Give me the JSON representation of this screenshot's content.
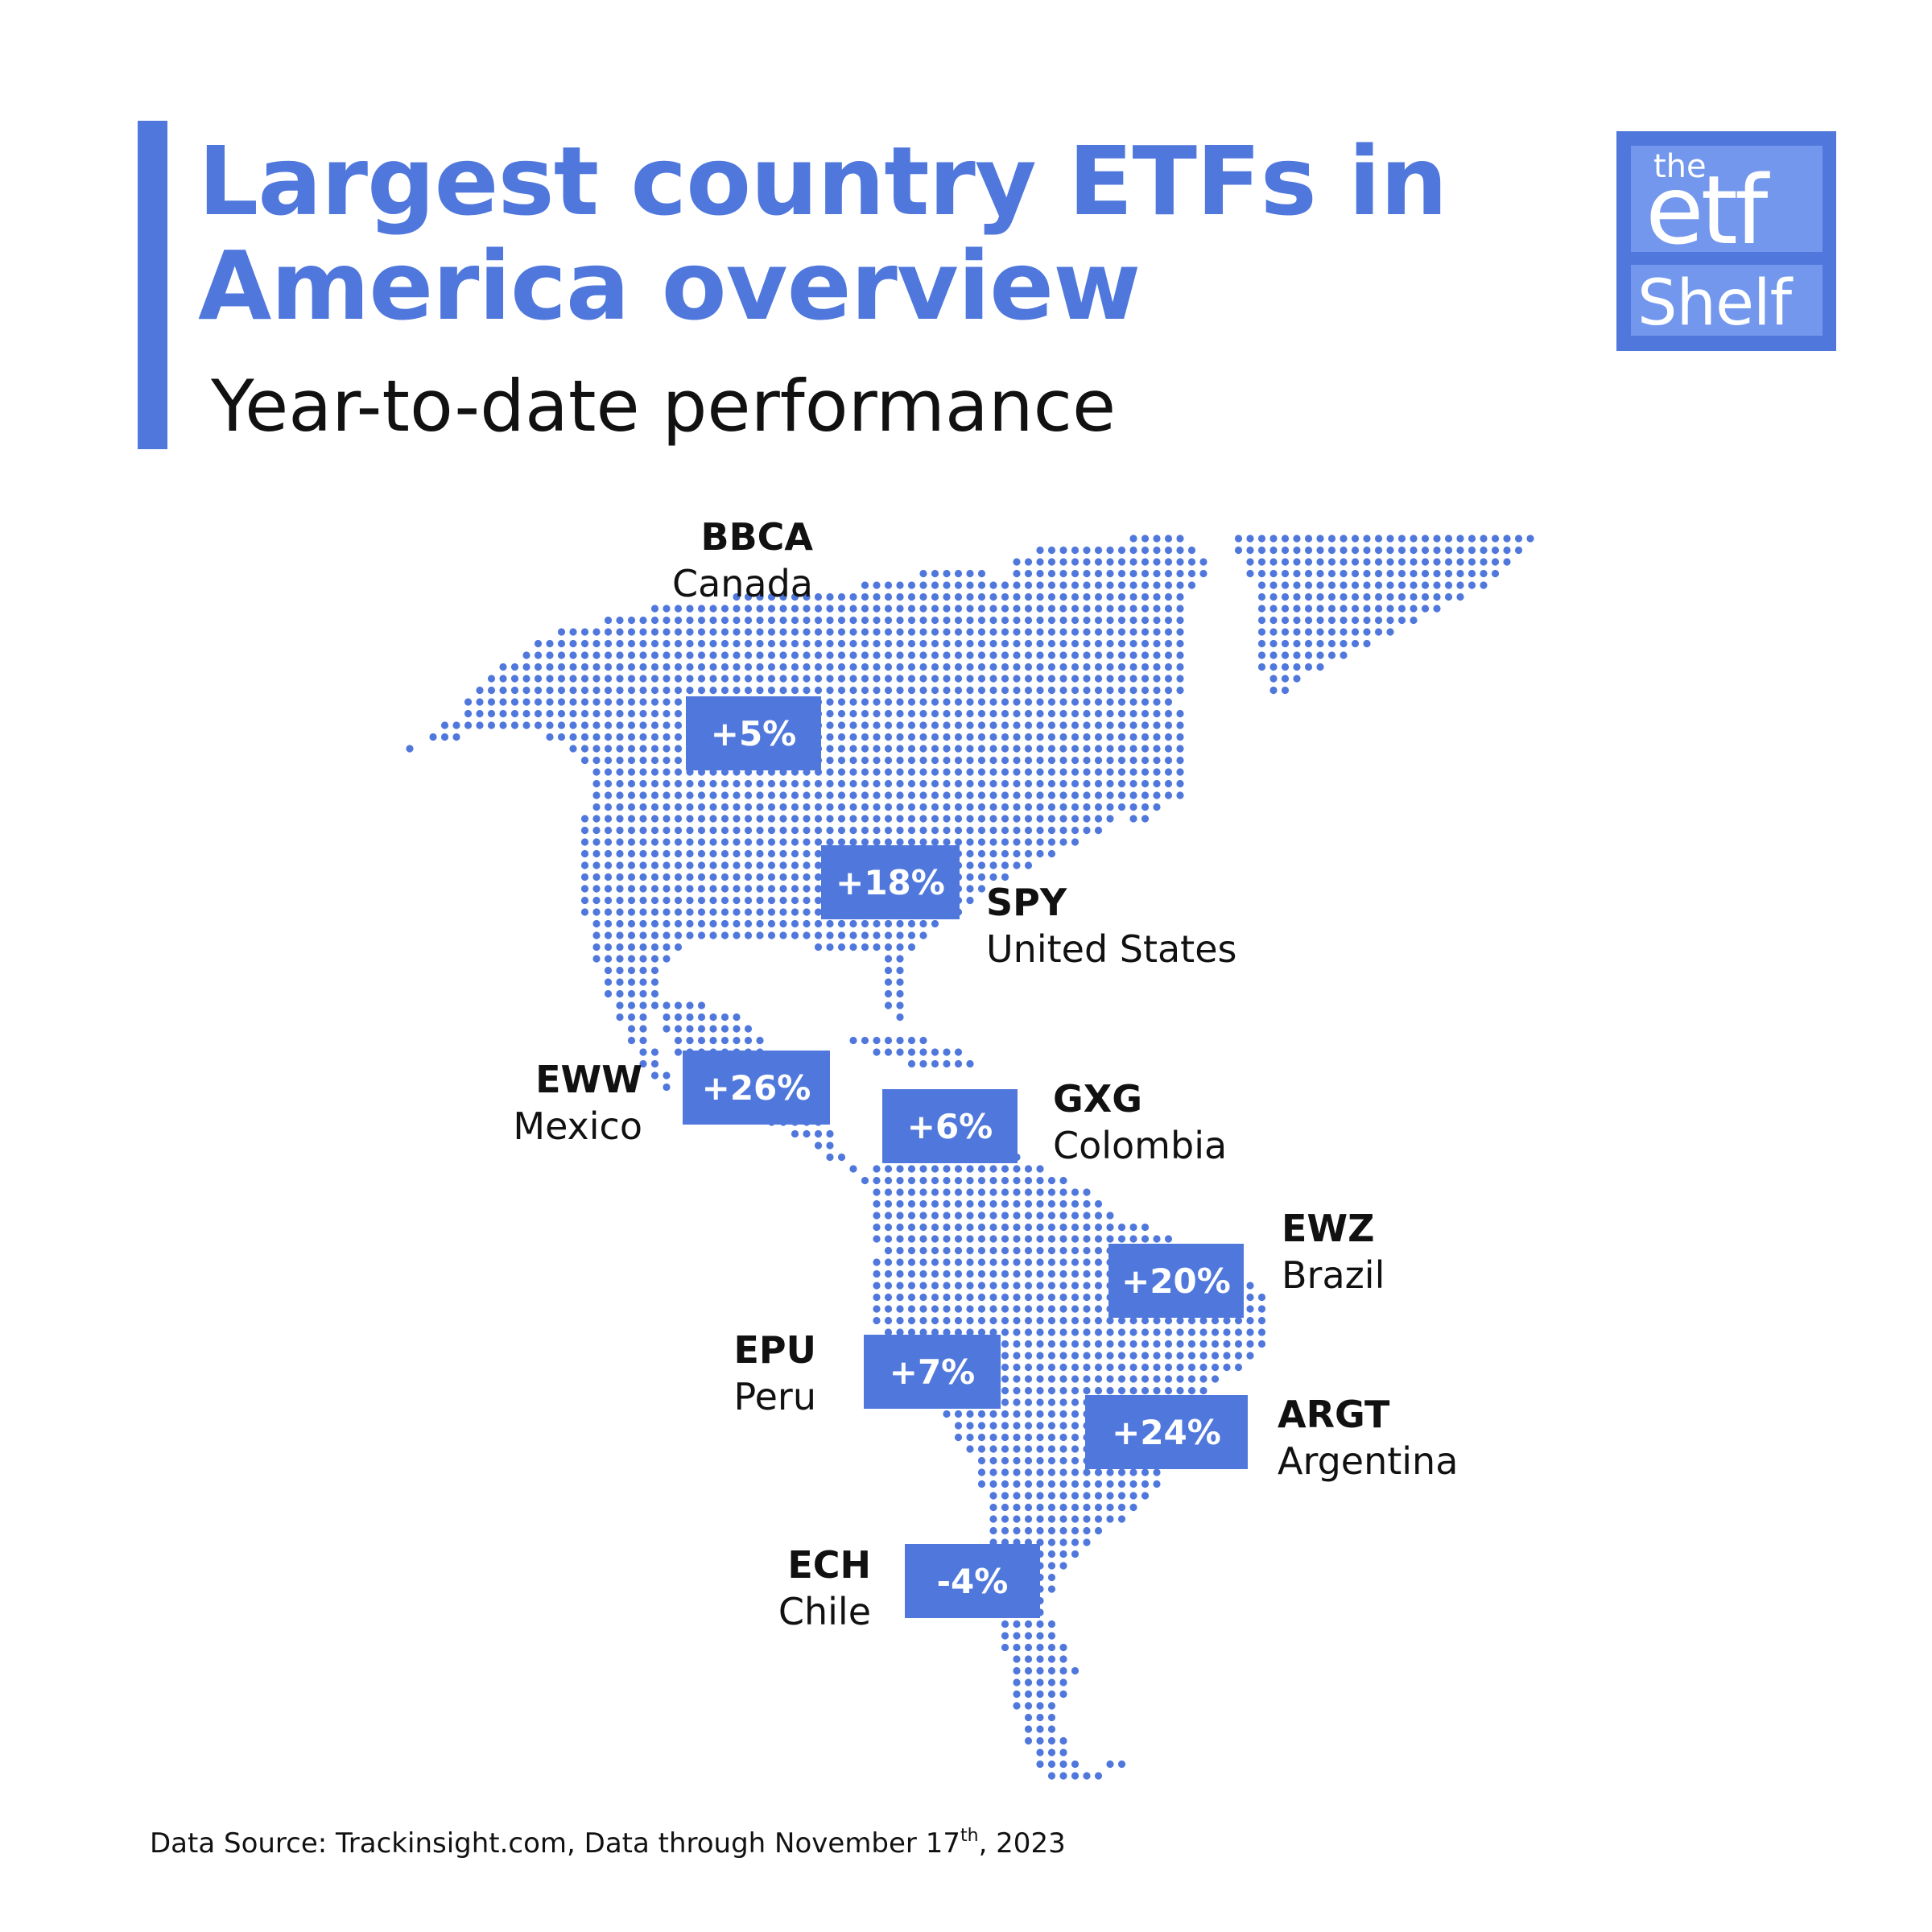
{
  "header": {
    "title_line1": "Largest country ETFs in",
    "title_line2": "America overview",
    "subtitle": "Year-to-date performance"
  },
  "logo": {
    "the": "the",
    "etf": "etf",
    "shelf": "Shelf"
  },
  "colors": {
    "accent": "#5078dc",
    "logo_light": "#7397ec",
    "text": "#111111"
  },
  "etfs": [
    {
      "ticker": "BBCA",
      "country": "Canada",
      "ytd": "+5%"
    },
    {
      "ticker": "SPY",
      "country": "United States",
      "ytd": "+18%"
    },
    {
      "ticker": "EWW",
      "country": "Mexico",
      "ytd": "+26%"
    },
    {
      "ticker": "GXG",
      "country": "Colombia",
      "ytd": "+6%"
    },
    {
      "ticker": "EWZ",
      "country": "Brazil",
      "ytd": "+20%"
    },
    {
      "ticker": "EPU",
      "country": "Peru",
      "ytd": "+7%"
    },
    {
      "ticker": "ARGT",
      "country": "Argentina",
      "ytd": "+24%"
    },
    {
      "ticker": "ECH",
      "country": "Chile",
      "ytd": "-4%"
    }
  ],
  "footer": {
    "prefix": "Data Source: Trackinsight.com, Data through November 17",
    "sup": "th",
    "suffix": ", 2023"
  }
}
